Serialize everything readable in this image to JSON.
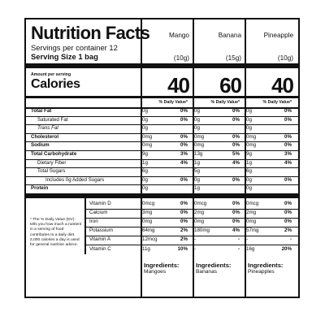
{
  "panel": {
    "title": "Nutrition Facts",
    "servings_per_container": "Servings per container 12",
    "serving_size": "Serving Size 1 bag",
    "amount_per_serving": "Amount per serving",
    "calories_label": "Calories",
    "dv_header": "% Daily Value*",
    "footnote": "* The % Daily Value (DV) tells you how much a nutrient in a serving of food contributes to a daily diet. 2,000 calories a day is used for general nutrition advice.",
    "ingredients_label": "Ingredients:"
  },
  "products": [
    {
      "name": "Mango",
      "serving_weight": "(10g)",
      "calories": "40",
      "ingredients": "Mangoes"
    },
    {
      "name": "Banana",
      "serving_weight": "(15g)",
      "calories": "60",
      "ingredients": "Bananas"
    },
    {
      "name": "Pineapple",
      "serving_weight": "(10g)",
      "calories": "40",
      "ingredients": "Pineapples"
    }
  ],
  "nutrients": [
    {
      "label": "Total Fat",
      "bold": true,
      "values": [
        [
          "0g",
          "0%"
        ],
        [
          "0g",
          "0%"
        ],
        [
          "0g",
          "0%"
        ]
      ]
    },
    {
      "label": "Saturated Fat",
      "values": [
        [
          "0g",
          "0%"
        ],
        [
          "0g",
          "0%"
        ],
        [
          "0g",
          "0%"
        ]
      ]
    },
    {
      "label": "Trans Fat",
      "values": [
        [
          "0g",
          ""
        ],
        [
          "0g",
          ""
        ],
        [
          "0g",
          ""
        ]
      ]
    },
    {
      "label": "Cholesterol",
      "bold": true,
      "values": [
        [
          "0mg",
          "0%"
        ],
        [
          "0mg",
          "0%"
        ],
        [
          "0mg",
          "0%"
        ]
      ]
    },
    {
      "label": "Sodium",
      "bold": true,
      "values": [
        [
          "0mg",
          "0%"
        ],
        [
          "0mg",
          "0%"
        ],
        [
          "0mg",
          "0%"
        ]
      ]
    },
    {
      "label": "Total Carbohydrate",
      "bold": true,
      "values": [
        [
          "9g",
          "3%"
        ],
        [
          "13g",
          "5%"
        ],
        [
          "9g",
          "3%"
        ]
      ]
    },
    {
      "label": "Dietary Fiber",
      "values": [
        [
          "1g",
          "4%"
        ],
        [
          "1g",
          "4%"
        ],
        [
          "1g",
          "4%"
        ]
      ]
    },
    {
      "label": "Total Sugars",
      "values": [
        [
          "6g",
          ""
        ],
        [
          "5g",
          ""
        ],
        [
          "6g",
          ""
        ]
      ]
    },
    {
      "label": "Includes 0g Added Sugars",
      "values": [
        [
          "0g",
          "0%"
        ],
        [
          "0g",
          "0%"
        ],
        [
          "0g",
          "0%"
        ]
      ]
    },
    {
      "label": "Protein",
      "bold": true,
      "values": [
        [
          "0g",
          ""
        ],
        [
          "1g",
          ""
        ],
        [
          "0g",
          ""
        ]
      ]
    }
  ],
  "vitamins": [
    {
      "label": "Vitamin D",
      "values": [
        [
          "0mcg",
          "0%"
        ],
        [
          "0mcg",
          "0%"
        ],
        [
          "0mcg",
          "0%"
        ]
      ]
    },
    {
      "label": "Calcium",
      "values": [
        [
          "3mg",
          "0%"
        ],
        [
          "2mg",
          "0%"
        ],
        [
          "2mg",
          "0%"
        ]
      ]
    },
    {
      "label": "Iron",
      "values": [
        [
          "0mg",
          "0%"
        ],
        [
          "0mg",
          "0%"
        ],
        [
          "0mg",
          "0%"
        ]
      ]
    },
    {
      "label": "Potassium",
      "values": [
        [
          "64mg",
          "2%"
        ],
        [
          "180mg",
          "4%"
        ],
        [
          "57mg",
          "2%"
        ]
      ]
    },
    {
      "label": "Vitamin A",
      "values": [
        [
          "12mcg",
          "2%"
        ],
        [
          "-",
          "-"
        ],
        [
          "-",
          "-"
        ]
      ]
    },
    {
      "label": "Vitamin C",
      "values": [
        [
          "11g",
          "10%"
        ],
        [
          "-",
          "-"
        ],
        [
          "16g",
          "20%"
        ]
      ]
    }
  ]
}
